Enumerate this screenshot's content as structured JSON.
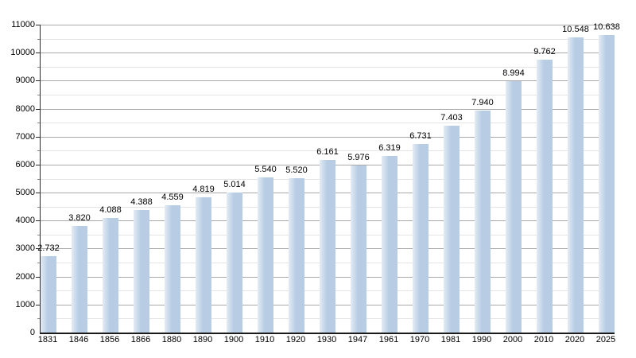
{
  "chart_data": {
    "type": "bar",
    "title": "",
    "xlabel": "",
    "ylabel": "",
    "categories": [
      "1831",
      "1846",
      "1856",
      "1866",
      "1880",
      "1890",
      "1900",
      "1910",
      "1920",
      "1930",
      "1947",
      "1961",
      "1970",
      "1981",
      "1990",
      "2000",
      "2010",
      "2020",
      "2025"
    ],
    "values": [
      2732,
      3820,
      4088,
      4388,
      4559,
      4819,
      5014,
      5540,
      5520,
      6161,
      5976,
      6319,
      6731,
      7403,
      7940,
      8994,
      9762,
      10548,
      10638
    ],
    "bar_labels": [
      "2.732",
      "3.820",
      "4.088",
      "4.388",
      "4.559",
      "4.819",
      "5.014",
      "5.540",
      "5.520",
      "6.161",
      "5.976",
      "6.319",
      "6.731",
      "7.403",
      "7.940",
      "8.994",
      "9.762",
      "10.548",
      "10.638"
    ],
    "ylim": [
      0,
      11000
    ],
    "y_major_ticks": [
      0,
      1000,
      2000,
      3000,
      4000,
      5000,
      6000,
      7000,
      8000,
      9000,
      10000,
      11000
    ],
    "y_minor_step": 500,
    "grid": "horizontal major+minor",
    "legend": "none",
    "colors": {
      "bar_fill": "#b8cde4",
      "bar_fill_light": "#e3ecf5",
      "grid_major": "#a9a9a9",
      "grid_minor": "#e4e4e4",
      "axis": "#1a1a1a",
      "text": "#000000"
    }
  }
}
